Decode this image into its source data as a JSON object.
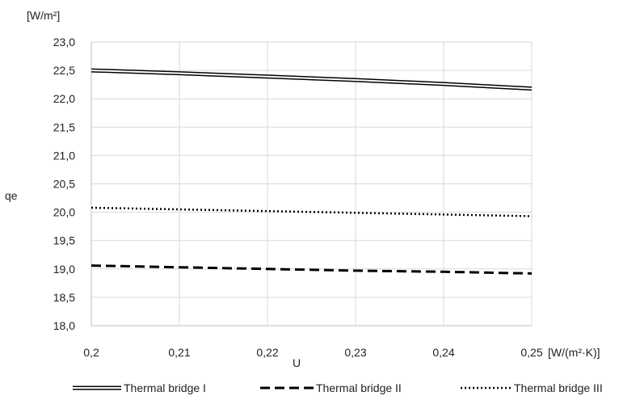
{
  "chart_data": {
    "type": "line",
    "xlabel": "U",
    "x_unit": "[W/(m²·K)]",
    "ylabel": "qe",
    "y_unit": "[W/m²]",
    "xlim": [
      0.2,
      0.25
    ],
    "ylim": [
      18.0,
      23.0
    ],
    "x_ticks": [
      "0,2",
      "0,21",
      "0,22",
      "0,23",
      "0,24",
      "0,25"
    ],
    "y_ticks": [
      "18,0",
      "18,5",
      "19,0",
      "19,5",
      "20,0",
      "20,5",
      "21,0",
      "21,5",
      "22,0",
      "22,5",
      "23,0"
    ],
    "grid": "horizontal",
    "legend_position": "bottom",
    "x": [
      0.2,
      0.21,
      0.22,
      0.23,
      0.24,
      0.25
    ],
    "series": [
      {
        "name": "Thermal bridge I",
        "style": "double",
        "values": [
          22.5,
          22.45,
          22.39,
          22.33,
          22.26,
          22.18
        ]
      },
      {
        "name": "Thermal bridge II",
        "style": "dashed",
        "values": [
          19.06,
          19.03,
          19.0,
          18.97,
          18.95,
          18.92
        ]
      },
      {
        "name": "Thermal bridge III",
        "style": "dotted",
        "values": [
          20.08,
          20.05,
          20.02,
          19.99,
          19.96,
          19.93
        ]
      }
    ],
    "colors": {
      "line": "#000000",
      "grid": "#d9d9d9",
      "axis": "#bfbfbf"
    }
  }
}
